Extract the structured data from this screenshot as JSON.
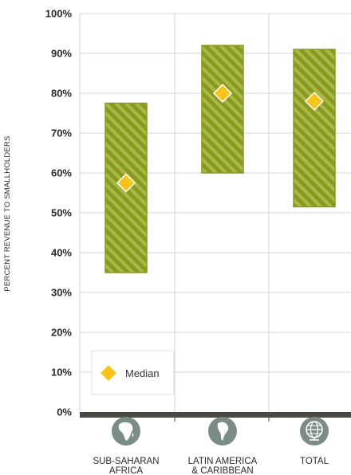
{
  "chart_data": {
    "type": "bar",
    "subtype": "floating-range-with-median",
    "categories": [
      {
        "lines": [
          "SUB-SAHARAN",
          "AFRICA"
        ],
        "icon": "africa-globe-icon"
      },
      {
        "lines": [
          "LATIN AMERICA",
          "& CARIBBEAN"
        ],
        "icon": "south-america-globe-icon"
      },
      {
        "lines": [
          "TOTAL"
        ],
        "icon": "world-globe-icon"
      }
    ],
    "series": [
      {
        "name": "Range",
        "low": [
          35,
          60,
          51.5
        ],
        "high": [
          77.5,
          92,
          91
        ]
      },
      {
        "name": "Median",
        "values": [
          57.5,
          80,
          78
        ]
      }
    ],
    "ylabel": "PERCENT REVENUE TO SMALLHOLDERS",
    "ylim": [
      0,
      100
    ],
    "yticks": [
      "0%",
      "10%",
      "20%",
      "30%",
      "40%",
      "50%",
      "60%",
      "70%",
      "80%",
      "90%",
      "100%"
    ],
    "grid": true,
    "legend": {
      "label": "Median",
      "placement": "bottom-left"
    },
    "colors": {
      "bar_fill": "#8a9a1f",
      "bar_stripe": "#a9b94a",
      "median": "#f7c51a",
      "axis": "#4a4a42",
      "grid": "#d4d4d4",
      "icon_bg": "#7b8c84"
    }
  }
}
